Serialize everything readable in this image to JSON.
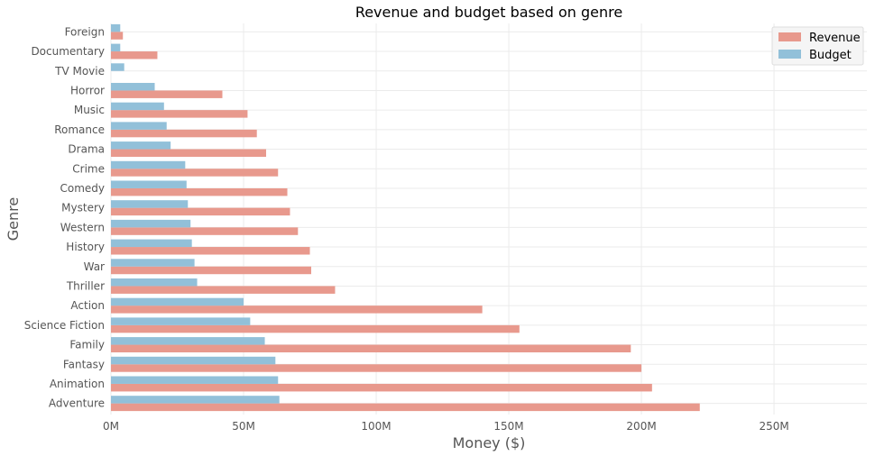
{
  "chart_data": {
    "type": "bar",
    "orientation": "horizontal",
    "title": "Revenue and budget based on genre",
    "xlabel": "Money ($)",
    "ylabel": "Genre",
    "xlim": [
      0,
      285
    ],
    "x_ticks": [
      0,
      50,
      100,
      150,
      200,
      250
    ],
    "x_tick_labels": [
      "0M",
      "50M",
      "100M",
      "150M",
      "200M",
      "250M"
    ],
    "grid": true,
    "legend_position": "top-right",
    "categories": [
      "Adventure",
      "Animation",
      "Fantasy",
      "Family",
      "Science Fiction",
      "Action",
      "Thriller",
      "War",
      "History",
      "Western",
      "Mystery",
      "Comedy",
      "Crime",
      "Drama",
      "Romance",
      "Music",
      "Horror",
      "TV Movie",
      "Documentary",
      "Foreign"
    ],
    "series": [
      {
        "name": "Revenue",
        "color": "#e8998d",
        "values": [
          222,
          204,
          200,
          196,
          154,
          140,
          84.5,
          75.5,
          75,
          70.5,
          67.5,
          66.5,
          63,
          58.5,
          55,
          51.5,
          42,
          0,
          17.5,
          4.5
        ]
      },
      {
        "name": "Budget",
        "color": "#92c0d9",
        "values": [
          63.5,
          63,
          62,
          58,
          52.5,
          50,
          32.5,
          31.5,
          30.5,
          30,
          29,
          28.5,
          28,
          22.5,
          21,
          20,
          16.5,
          5,
          3.5,
          3.5
        ]
      }
    ]
  }
}
